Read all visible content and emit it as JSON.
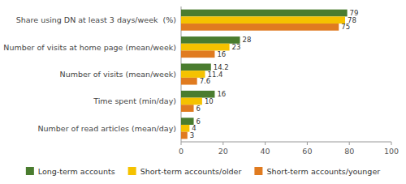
{
  "chart_data": {
    "type": "bar",
    "orientation": "horizontal",
    "categories": [
      "Number of read articles (mean/day)",
      "Time spent (min/day)",
      "Number of visits (mean/week)",
      "Number of visits at home page (mean/week)",
      "Share using DN at least 3 days/week  (%)"
    ],
    "series": [
      {
        "name": "Long-term accounts",
        "color": "#4a7c2f",
        "values": [
          6,
          16,
          14.2,
          28,
          79
        ]
      },
      {
        "name": "Short-term accounts/older",
        "color": "#f5c200",
        "values": [
          4,
          10,
          11.4,
          23,
          78
        ]
      },
      {
        "name": "Short-term accounts/younger",
        "color": "#e07b20",
        "values": [
          3,
          6,
          7.6,
          16,
          75
        ]
      }
    ],
    "xlim": [
      0,
      100
    ],
    "xticks": [
      0,
      20,
      40,
      60,
      80,
      100
    ],
    "grid": false,
    "legend": "bottom",
    "data_labels": true
  }
}
